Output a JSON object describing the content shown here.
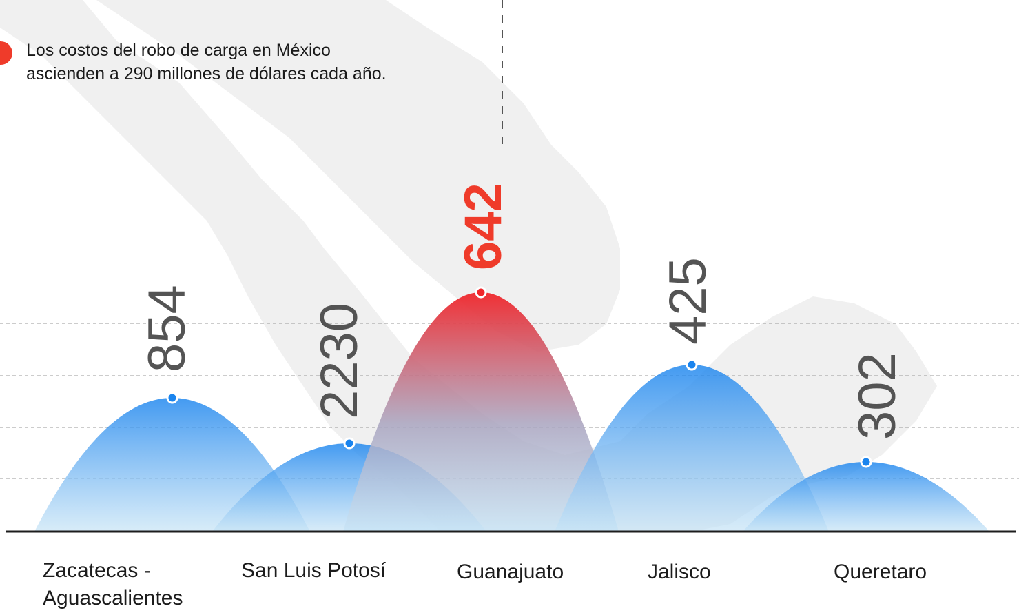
{
  "annotation": {
    "text_line1": "Los costos del robo de carga en México",
    "text_line2": "ascienden a 290 millones de dólares cada año."
  },
  "colors": {
    "blue": "#1a84ee",
    "blue_light": "#c7e4f6",
    "red": "#f0262b",
    "highlight_label": "#ef3b2a",
    "label": "#545454",
    "map": "#f0f0f0",
    "grid": "#9a9a9a"
  },
  "chart_data": {
    "type": "area",
    "categories": [
      "Zacatecas-Aguascalientes",
      "San Luis Potosí",
      "Guanajuato",
      "Jalisco",
      "Queretaro"
    ],
    "category_labels": [
      "Zacatecas -\nAguascalientes",
      "San Luis Potosí",
      "Guanajuato",
      "Jalisco",
      "Queretaro"
    ],
    "values": [
      854,
      2230,
      642,
      425,
      302
    ],
    "highlight": "Guanajuato",
    "title": "",
    "xlabel": "",
    "ylabel": "",
    "grid": true,
    "legend": "none"
  }
}
